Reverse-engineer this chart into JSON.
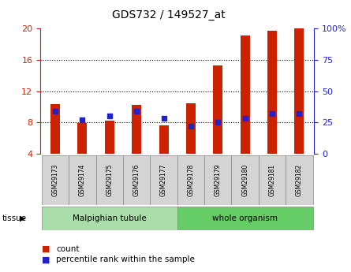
{
  "title": "GDS732 / 149527_at",
  "samples": [
    "GSM29173",
    "GSM29174",
    "GSM29175",
    "GSM29176",
    "GSM29177",
    "GSM29178",
    "GSM29179",
    "GSM29180",
    "GSM29181",
    "GSM29182"
  ],
  "counts": [
    10.3,
    7.9,
    8.2,
    10.2,
    7.6,
    10.4,
    15.3,
    19.1,
    19.7,
    20.0
  ],
  "percentiles": [
    34,
    27,
    30,
    34,
    28,
    22,
    25,
    28,
    32,
    32
  ],
  "ylim_left": [
    4,
    20
  ],
  "ylim_right": [
    0,
    100
  ],
  "yticks_left": [
    4,
    8,
    12,
    16,
    20
  ],
  "yticks_right": [
    0,
    25,
    50,
    75,
    100
  ],
  "bar_color": "#cc2200",
  "marker_color": "#2222cc",
  "bar_width": 0.35,
  "tissue_colors": {
    "Malpighian tubule": "#aaddaa",
    "whole organism": "#66cc66"
  },
  "group_info": [
    {
      "label": "Malpighian tubule",
      "start": 0,
      "end": 4
    },
    {
      "label": "whole organism",
      "start": 5,
      "end": 9
    }
  ],
  "legend_count_label": "count",
  "legend_percentile_label": "percentile rank within the sample",
  "right_ytick_labels": [
    "0",
    "25",
    "50",
    "75",
    "100%"
  ],
  "grid_yticks": [
    8,
    12,
    16
  ]
}
